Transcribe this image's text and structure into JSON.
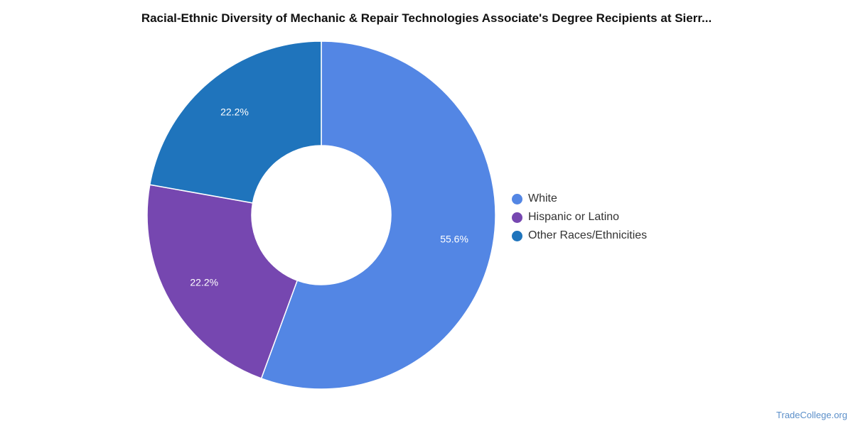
{
  "chart_data": {
    "type": "pie",
    "title": "Racial-Ethnic Diversity of Mechanic & Repair Technologies Associate's Degree Recipients at Sierr...",
    "slices": [
      {
        "label": "White",
        "value": 55.6,
        "display": "55.6%",
        "color": "#5386e4"
      },
      {
        "label": "Hispanic or Latino",
        "value": 22.2,
        "display": "22.2%",
        "color": "#7647b0"
      },
      {
        "label": "Other Races/Ethnicities",
        "value": 22.2,
        "display": "22.2%",
        "color": "#1f74bc"
      }
    ],
    "donut": true,
    "legend_position": "right"
  },
  "footer": {
    "source": "TradeCollege.org"
  }
}
